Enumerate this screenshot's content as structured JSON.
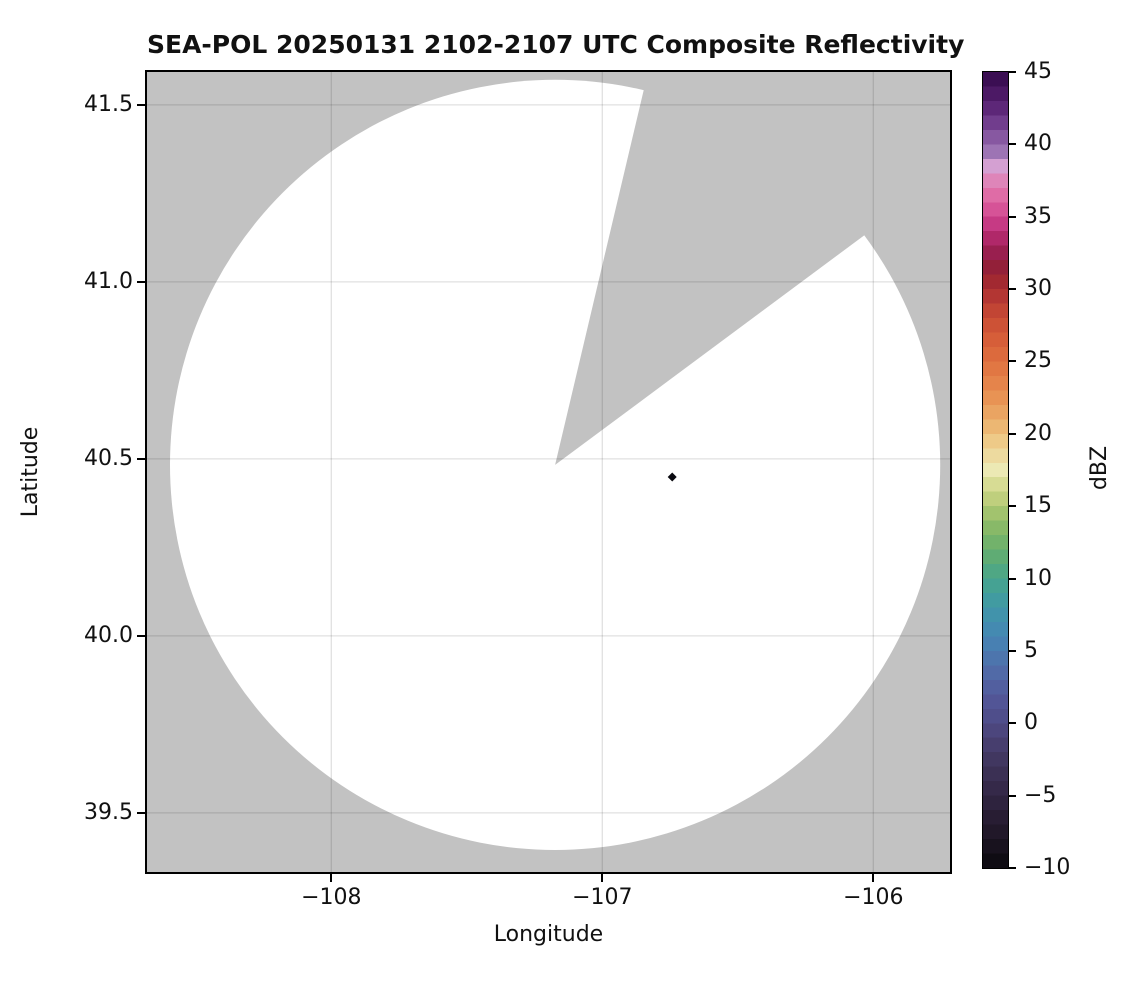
{
  "title": "SEA-POL 20250131 2102-2107 UTC Composite Reflectivity",
  "axes": {
    "xlabel": "Longitude",
    "ylabel": "Latitude",
    "x_tick_labels": [
      "−108",
      "−107",
      "−106"
    ],
    "y_tick_labels": [
      "41.5",
      "41.0",
      "40.5",
      "40.0",
      "39.5"
    ]
  },
  "colorbar": {
    "label": "dBZ",
    "tick_labels": [
      "45",
      "40",
      "35",
      "30",
      "25",
      "20",
      "15",
      "10",
      "5",
      "0",
      "−5",
      "−10"
    ]
  },
  "chart_data": {
    "type": "heatmap",
    "title": "SEA-POL 20250131 2102-2107 UTC Composite Reflectivity",
    "xlabel": "Longitude",
    "ylabel": "Latitude",
    "xlim": [
      -108.68,
      -105.717
    ],
    "ylim": [
      39.333,
      41.593
    ],
    "x_ticks": [
      -108,
      -107,
      -106
    ],
    "y_ticks": [
      41.5,
      41.0,
      40.5,
      40.0,
      39.5
    ],
    "grid": true,
    "grid_color": "rgba(0,0,0,0.12)",
    "nodata_color": "#c2c2c2",
    "coverage_circle": {
      "center_lon": -107.174,
      "center_lat": 40.483,
      "radius_deg_lat": 1.088,
      "radius_km": 121,
      "fill": "#ffffff"
    },
    "missing_sector": {
      "azimuth_start_deg": 13.3,
      "azimuth_end_deg": 53.4
    },
    "echoes": [
      {
        "lon": -106.742,
        "lat": 40.449,
        "value_dbz": -10,
        "color": "#0a0a10"
      }
    ],
    "colorbar": {
      "label": "dBZ",
      "vmin": -10,
      "vmax": 45,
      "ticks": [
        45,
        40,
        35,
        30,
        25,
        20,
        15,
        10,
        5,
        0,
        -5,
        -10
      ],
      "band_step_dbz": 1,
      "gradient_stops": [
        [
          -10,
          "#0a090d"
        ],
        [
          -8,
          "#1d1524"
        ],
        [
          -6,
          "#2b2038"
        ],
        [
          -4,
          "#382c4e"
        ],
        [
          -2,
          "#443a66"
        ],
        [
          0,
          "#4e4a85"
        ],
        [
          2,
          "#53599b"
        ],
        [
          4,
          "#5070ab"
        ],
        [
          6,
          "#4585b4"
        ],
        [
          8,
          "#3f97a8"
        ],
        [
          10,
          "#47a58c"
        ],
        [
          12,
          "#67ae6c"
        ],
        [
          14,
          "#93bd67"
        ],
        [
          16,
          "#cdd584"
        ],
        [
          17.5,
          "#ece9b4"
        ],
        [
          19,
          "#eed294"
        ],
        [
          20,
          "#edc17b"
        ],
        [
          22,
          "#e99a59"
        ],
        [
          24,
          "#e37d46"
        ],
        [
          26,
          "#da643a"
        ],
        [
          28,
          "#c94c34"
        ],
        [
          30,
          "#ac2e33"
        ],
        [
          31,
          "#97242f"
        ],
        [
          32,
          "#8f1c43"
        ],
        [
          33,
          "#a3215a"
        ],
        [
          34,
          "#bc2f77"
        ],
        [
          35,
          "#cf4590"
        ],
        [
          36,
          "#dd609e"
        ],
        [
          37,
          "#e077ad"
        ],
        [
          38,
          "#dc92c4"
        ],
        [
          38.5,
          "#d4a0d2"
        ],
        [
          39,
          "#a981bd"
        ],
        [
          40,
          "#9166ab"
        ],
        [
          41,
          "#7c4a97"
        ],
        [
          42,
          "#662f82"
        ],
        [
          43,
          "#541f6e"
        ],
        [
          44,
          "#43125c"
        ],
        [
          45,
          "#330a4a"
        ]
      ]
    }
  }
}
